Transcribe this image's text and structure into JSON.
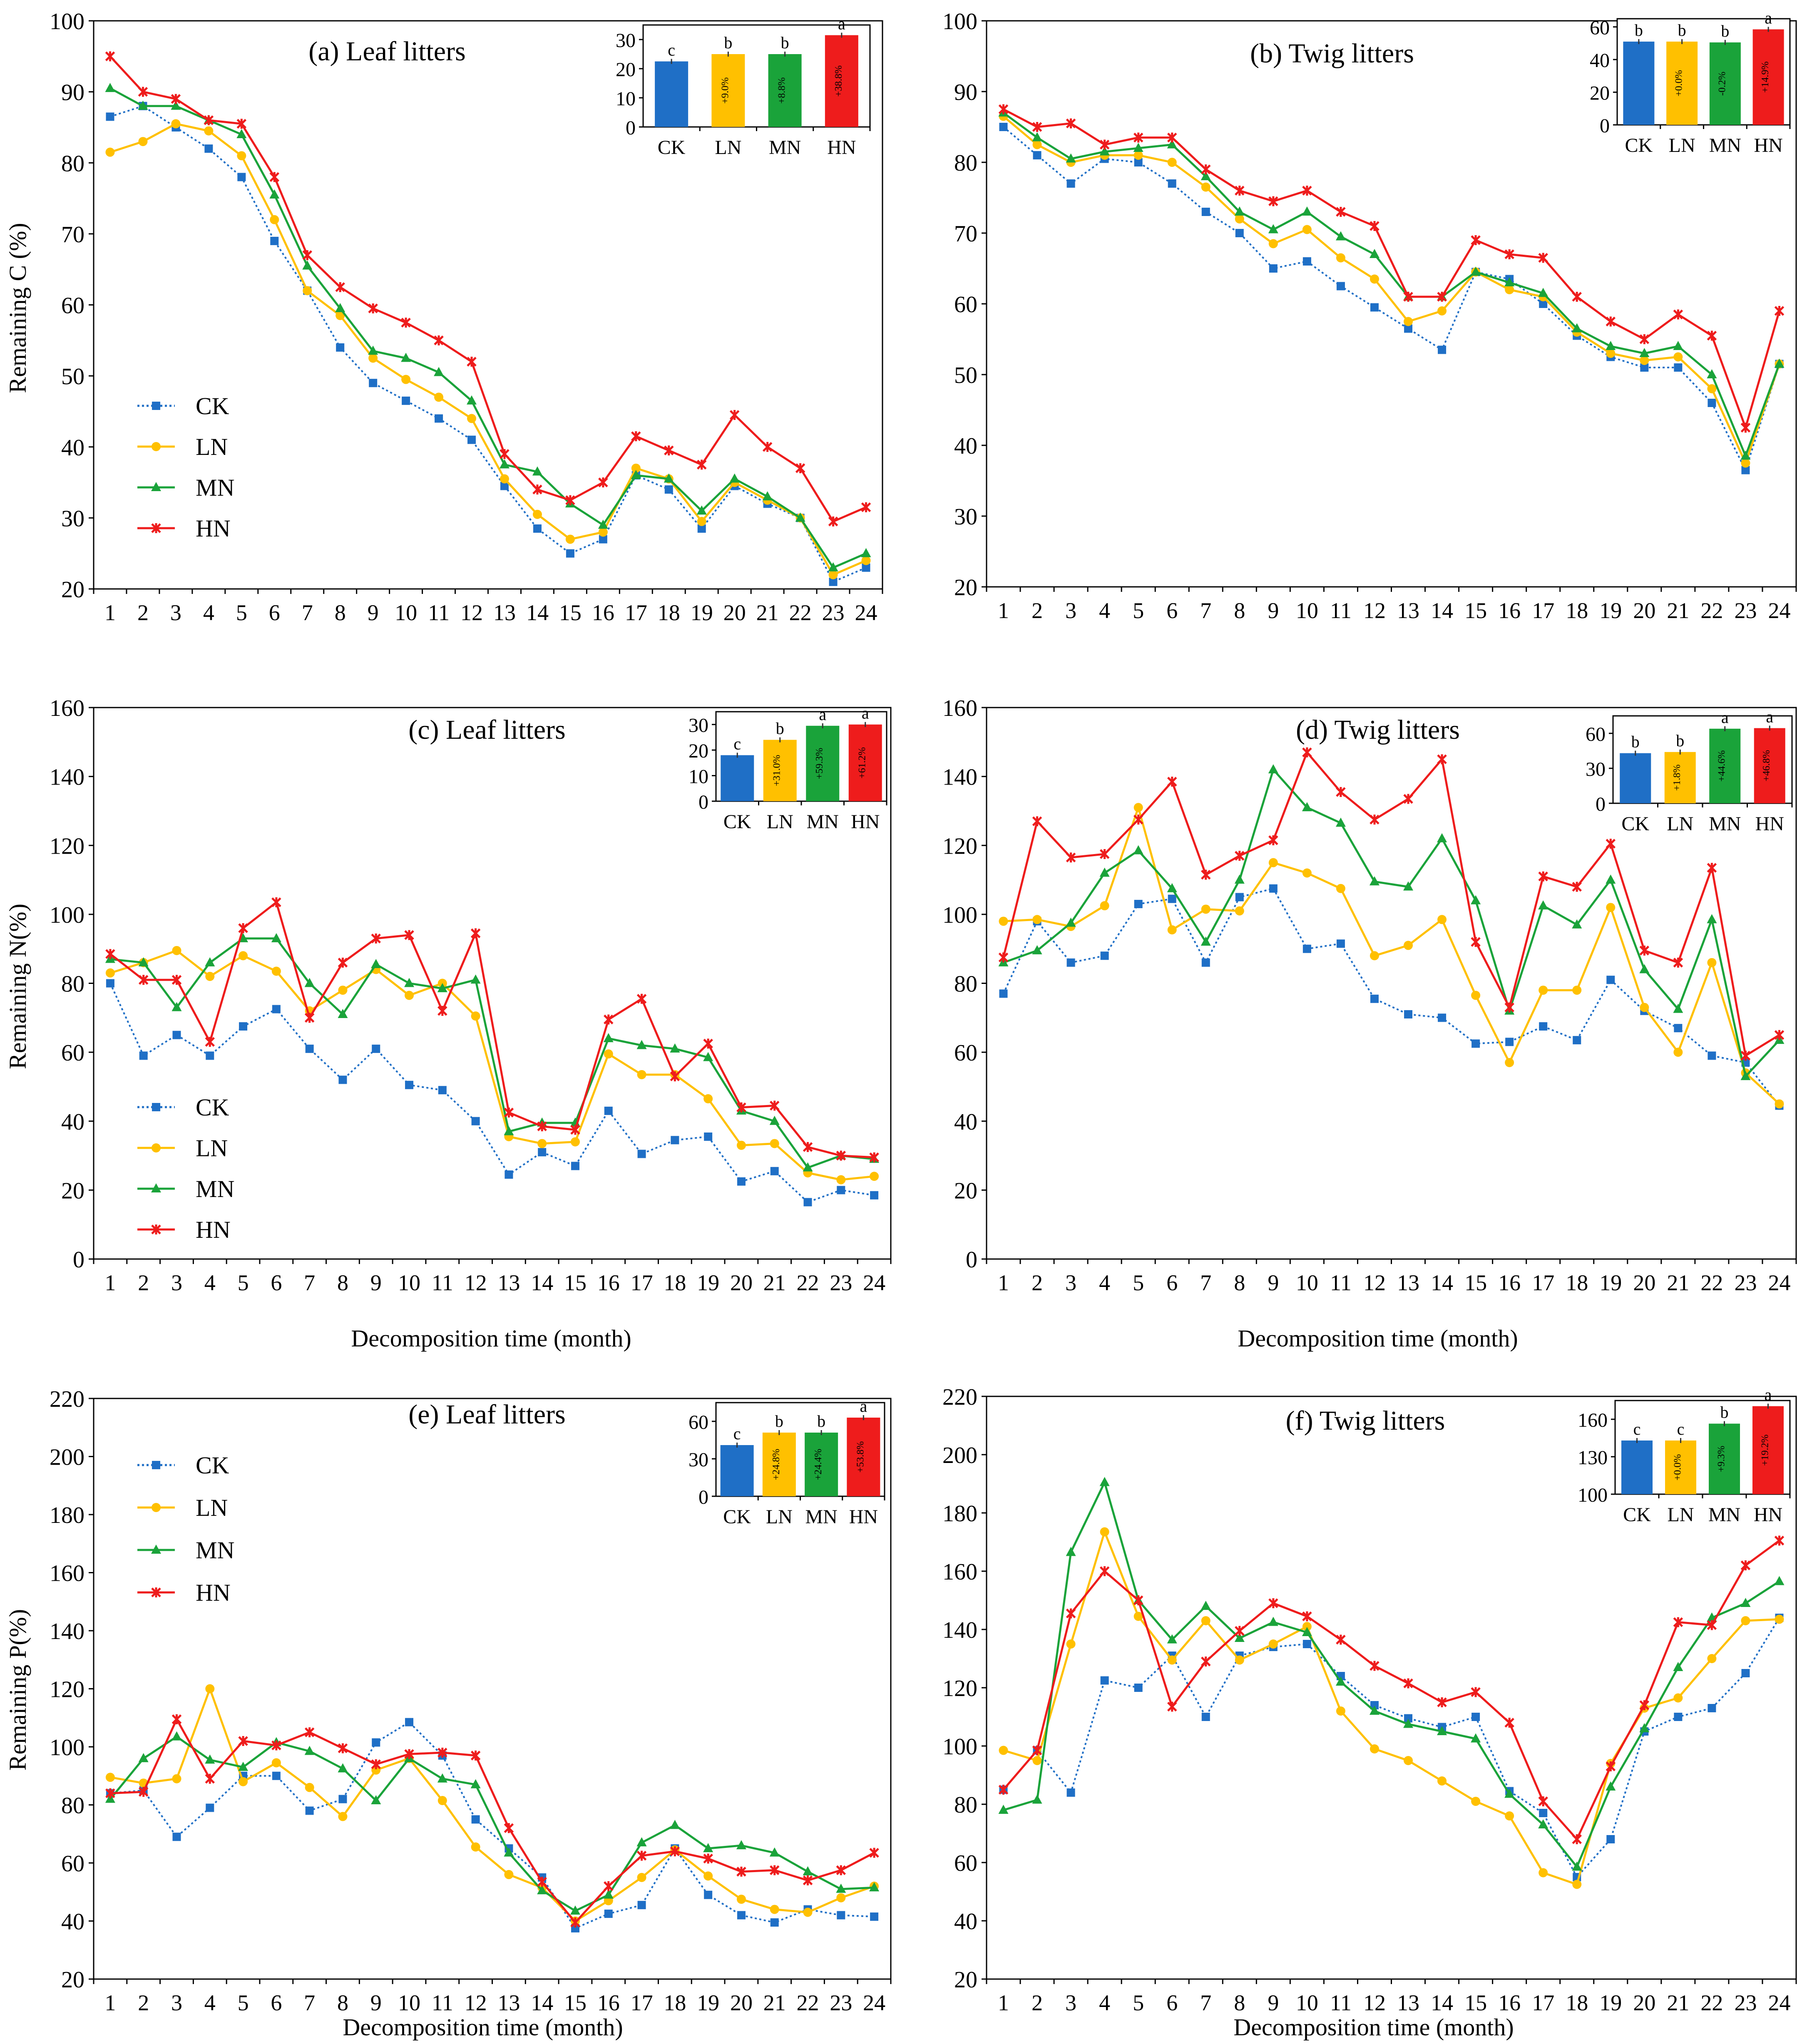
{
  "figure": {
    "axis_label_remaining_c": "Remaining C (%)",
    "axis_label_remaining_n": "Remaining N(%)",
    "axis_label_remaining_p": "Remaining P(%)",
    "axis_label_time": "Decomposition time (month)"
  },
  "colors": {
    "CK": "#1f6fc6",
    "LN": "#ffc000",
    "MN": "#1aa33a",
    "HN": "#ee1c1c"
  },
  "chart_data": [
    {
      "id": "a",
      "type": "line",
      "title": "(a) Leaf litters",
      "xlabel": "",
      "ylabel": "Remaining C (%)",
      "x": [
        1,
        2,
        3,
        4,
        5,
        6,
        7,
        8,
        9,
        10,
        11,
        12,
        13,
        14,
        15,
        16,
        17,
        18,
        19,
        20,
        21,
        22,
        23,
        24
      ],
      "ylim": [
        20,
        100
      ],
      "yticks": [
        20,
        30,
        40,
        50,
        60,
        70,
        80,
        90,
        100
      ],
      "legend": "left",
      "series": [
        {
          "name": "CK",
          "values": [
            86.5,
            88,
            85,
            82,
            78,
            69,
            62,
            54,
            49,
            46.5,
            44,
            41,
            34.5,
            28.5,
            25,
            27,
            36,
            34,
            28.5,
            34.5,
            32,
            30,
            21,
            23
          ]
        },
        {
          "name": "LN",
          "values": [
            81.5,
            83,
            85.5,
            84.5,
            81,
            72,
            62,
            58.5,
            52.5,
            49.5,
            47,
            44,
            35.5,
            30.5,
            27,
            28,
            37,
            35.5,
            29.5,
            35,
            32.5,
            30,
            22,
            24
          ]
        },
        {
          "name": "MN",
          "values": [
            90.5,
            88,
            88,
            86,
            84,
            75.5,
            65.5,
            59.5,
            53.5,
            52.5,
            50.5,
            46.5,
            37.5,
            36.5,
            32,
            29,
            36,
            35.5,
            31,
            35.5,
            33,
            30,
            23,
            25
          ]
        },
        {
          "name": "HN",
          "values": [
            95,
            90,
            89,
            86,
            85.5,
            78,
            67,
            62.5,
            59.5,
            57.5,
            55,
            52,
            39,
            34,
            32.5,
            35,
            41.5,
            39.5,
            37.5,
            44.5,
            40,
            37,
            29.5,
            31.5
          ]
        }
      ],
      "inset": {
        "type": "bar",
        "categories": [
          "CK",
          "LN",
          "MN",
          "HN"
        ],
        "values": [
          22.5,
          25,
          25,
          31.5
        ],
        "ylim": [
          0,
          35
        ],
        "yticks": [
          0,
          10,
          20,
          30
        ],
        "letters": [
          "c",
          "b",
          "b",
          "a"
        ],
        "changes": [
          "",
          "+9.0%",
          "+8.8%",
          "+38.8%"
        ]
      }
    },
    {
      "id": "b",
      "type": "line",
      "title": "(b) Twig litters",
      "xlabel": "",
      "ylabel": "",
      "x": [
        1,
        2,
        3,
        4,
        5,
        6,
        7,
        8,
        9,
        10,
        11,
        12,
        13,
        14,
        15,
        16,
        17,
        18,
        19,
        20,
        21,
        22,
        23,
        24
      ],
      "ylim": [
        20,
        100
      ],
      "yticks": [
        20,
        30,
        40,
        50,
        60,
        70,
        80,
        90,
        100
      ],
      "legend": "none",
      "series": [
        {
          "name": "CK",
          "values": [
            85,
            81,
            77,
            80.5,
            80,
            77,
            73,
            70,
            65,
            66,
            62.5,
            59.5,
            56.5,
            53.5,
            64.5,
            63.5,
            60,
            55.5,
            52.5,
            51,
            51,
            46,
            36.5,
            51.5
          ]
        },
        {
          "name": "LN",
          "values": [
            86.5,
            82.5,
            80,
            81,
            81,
            80,
            76.5,
            72,
            68.5,
            70.5,
            66.5,
            63.5,
            57.5,
            59,
            64.5,
            62,
            61,
            56,
            53,
            52,
            52.5,
            48,
            37.5,
            51.5
          ]
        },
        {
          "name": "MN",
          "values": [
            87,
            83.5,
            80.5,
            81.5,
            82,
            82.5,
            78,
            73,
            70.5,
            73,
            69.5,
            67,
            61,
            61,
            64.5,
            63,
            61.5,
            56.5,
            54,
            53,
            54,
            50,
            38.5,
            51.5
          ]
        },
        {
          "name": "HN",
          "values": [
            87.5,
            85,
            85.5,
            82.5,
            83.5,
            83.5,
            79,
            76,
            74.5,
            76,
            73,
            71,
            61,
            61,
            69,
            67,
            66.5,
            61,
            57.5,
            55,
            58.5,
            55.5,
            42.5,
            59
          ]
        }
      ],
      "inset": {
        "type": "bar",
        "categories": [
          "CK",
          "LN",
          "MN",
          "HN"
        ],
        "values": [
          51,
          51,
          50.5,
          58.5
        ],
        "ylim": [
          0,
          65
        ],
        "yticks": [
          0,
          20,
          40,
          60
        ],
        "letters": [
          "b",
          "b",
          "b",
          "a"
        ],
        "changes": [
          "",
          "+0.0%",
          "-0.2%",
          "+14.9%"
        ]
      }
    },
    {
      "id": "c",
      "type": "line",
      "title": "(c) Leaf litters",
      "xlabel": "Decomposition time (month)",
      "ylabel": "Remaining N(%)",
      "x": [
        1,
        2,
        3,
        4,
        5,
        6,
        7,
        8,
        9,
        10,
        11,
        12,
        13,
        14,
        15,
        16,
        17,
        18,
        19,
        20,
        21,
        22,
        23,
        24
      ],
      "ylim": [
        0,
        160
      ],
      "yticks": [
        0,
        20,
        40,
        60,
        80,
        100,
        120,
        140,
        160
      ],
      "legend": "left",
      "series": [
        {
          "name": "CK",
          "values": [
            80,
            59,
            65,
            59,
            67.5,
            72.5,
            61,
            52,
            61,
            50.5,
            49,
            40,
            24.5,
            31,
            27,
            43,
            30.5,
            34.5,
            35.5,
            22.5,
            25.5,
            16.5,
            20,
            18.5
          ]
        },
        {
          "name": "LN",
          "values": [
            83,
            86,
            89.5,
            82,
            88,
            83.5,
            72,
            78,
            84,
            76.5,
            80,
            70.5,
            35.5,
            33.5,
            34,
            59.5,
            53.5,
            53.5,
            46.5,
            33,
            33.5,
            25,
            23,
            24
          ]
        },
        {
          "name": "MN",
          "values": [
            87,
            86,
            73,
            86,
            93,
            93,
            80,
            71,
            85.5,
            80,
            78.5,
            81,
            37,
            39.5,
            39.5,
            64,
            62,
            61,
            58.5,
            43,
            40,
            26.5,
            30,
            29
          ]
        },
        {
          "name": "HN",
          "values": [
            88.5,
            81,
            81,
            63,
            96,
            103.5,
            70,
            86,
            93,
            94,
            72,
            94.5,
            42.5,
            38.5,
            37.5,
            69.5,
            75.5,
            53,
            62.5,
            44,
            44.5,
            32.5,
            30,
            29.5
          ]
        }
      ],
      "inset": {
        "type": "bar",
        "categories": [
          "CK",
          "LN",
          "MN",
          "HN"
        ],
        "values": [
          18,
          24,
          29.5,
          30
        ],
        "ylim": [
          0,
          35
        ],
        "yticks": [
          0,
          10,
          20,
          30
        ],
        "letters": [
          "c",
          "b",
          "a",
          "a"
        ],
        "changes": [
          "",
          "+31.0%",
          "+59.3%",
          "+61.2%"
        ]
      }
    },
    {
      "id": "d",
      "type": "line",
      "title": "(d) Twig litters",
      "xlabel": "Decomposition time (month)",
      "ylabel": "",
      "x": [
        1,
        2,
        3,
        4,
        5,
        6,
        7,
        8,
        9,
        10,
        11,
        12,
        13,
        14,
        15,
        16,
        17,
        18,
        19,
        20,
        21,
        22,
        23,
        24
      ],
      "ylim": [
        0,
        160
      ],
      "yticks": [
        0,
        20,
        40,
        60,
        80,
        100,
        120,
        140,
        160
      ],
      "legend": "none",
      "series": [
        {
          "name": "CK",
          "values": [
            77,
            98,
            86,
            88,
            103,
            104.5,
            86,
            105,
            107.5,
            90,
            91.5,
            75.5,
            71,
            70,
            62.5,
            63,
            67.5,
            63.5,
            81,
            72,
            67,
            59,
            57,
            44.5
          ]
        },
        {
          "name": "LN",
          "values": [
            98,
            98.5,
            96.5,
            102.5,
            131,
            95.5,
            101.5,
            101,
            115,
            112,
            107.5,
            88,
            91,
            98.5,
            76.5,
            57,
            78,
            78,
            102,
            73,
            60,
            86,
            54,
            45
          ]
        },
        {
          "name": "MN",
          "values": [
            86,
            89.5,
            97.5,
            112,
            118.5,
            107.5,
            92,
            110,
            142,
            131,
            126.5,
            109.5,
            108,
            122,
            104,
            72,
            102.5,
            97,
            110,
            84,
            72.5,
            98.5,
            53,
            63.5
          ]
        },
        {
          "name": "HN",
          "values": [
            87.5,
            127,
            116.5,
            117.5,
            127.5,
            138.5,
            111.5,
            117,
            121.5,
            147,
            135.5,
            127.5,
            133.5,
            145,
            92,
            73,
            111,
            108,
            120.5,
            89.5,
            86,
            113.5,
            59,
            65
          ]
        }
      ],
      "inset": {
        "type": "bar",
        "categories": [
          "CK",
          "LN",
          "MN",
          "HN"
        ],
        "values": [
          43,
          44,
          64,
          64.5
        ],
        "ylim": [
          0,
          75
        ],
        "yticks": [
          0,
          30,
          60
        ],
        "letters": [
          "b",
          "b",
          "a",
          "a"
        ],
        "changes": [
          "",
          "+1.8%",
          "+44.6%",
          "+46.8%"
        ]
      }
    },
    {
      "id": "e",
      "type": "line",
      "title": "(e) Leaf litters",
      "xlabel": "Decomposition time (month)",
      "ylabel": "Remaining P(%)",
      "x": [
        1,
        2,
        3,
        4,
        5,
        6,
        7,
        8,
        9,
        10,
        11,
        12,
        13,
        14,
        15,
        16,
        17,
        18,
        19,
        20,
        21,
        22,
        23,
        24
      ],
      "ylim": [
        20,
        220
      ],
      "yticks": [
        20,
        40,
        60,
        80,
        100,
        120,
        140,
        160,
        180,
        200,
        220
      ],
      "legend": "top-left",
      "series": [
        {
          "name": "CK",
          "values": [
            84,
            85,
            69,
            79,
            90,
            90,
            78,
            82,
            101.5,
            108.5,
            97,
            75,
            65,
            55,
            37.5,
            42.5,
            45.5,
            65,
            49,
            42,
            39.5,
            44,
            42,
            41.5
          ]
        },
        {
          "name": "LN",
          "values": [
            89.5,
            87.5,
            89,
            120,
            88,
            94.5,
            86,
            76,
            92,
            96,
            81.5,
            65.5,
            56,
            51.5,
            40,
            47,
            55,
            64.5,
            55.5,
            47.5,
            44,
            43,
            48,
            52
          ]
        },
        {
          "name": "MN",
          "values": [
            82,
            96,
            103.5,
            95.5,
            93,
            101.5,
            98.5,
            92.5,
            81.5,
            96,
            89,
            87,
            63.5,
            50.5,
            43.5,
            49,
            67,
            73,
            65,
            66,
            63.5,
            57,
            51,
            51.5
          ]
        },
        {
          "name": "HN",
          "values": [
            84,
            84.5,
            109.5,
            89,
            102,
            100.5,
            105,
            99.5,
            94,
            97.5,
            98,
            97,
            72,
            53.5,
            39.5,
            52,
            62.5,
            64,
            61.5,
            57,
            57.5,
            54,
            57.5,
            63.5
          ]
        }
      ],
      "inset": {
        "type": "bar",
        "categories": [
          "CK",
          "LN",
          "MN",
          "HN"
        ],
        "values": [
          41,
          51,
          51,
          63
        ],
        "ylim": [
          0,
          75
        ],
        "yticks": [
          0,
          30,
          60
        ],
        "letters": [
          "c",
          "b",
          "b",
          "a"
        ],
        "changes": [
          "",
          "+24.8%",
          "+24.4%",
          "+53.8%"
        ]
      }
    },
    {
      "id": "f",
      "type": "line",
      "title": "(f) Twig litters",
      "xlabel": "Decomposition time (month)",
      "ylabel": "",
      "x": [
        1,
        2,
        3,
        4,
        5,
        6,
        7,
        8,
        9,
        10,
        11,
        12,
        13,
        14,
        15,
        16,
        17,
        18,
        19,
        20,
        21,
        22,
        23,
        24
      ],
      "ylim": [
        20,
        220
      ],
      "yticks": [
        20,
        40,
        60,
        80,
        100,
        120,
        140,
        160,
        180,
        200,
        220
      ],
      "legend": "none",
      "series": [
        {
          "name": "CK",
          "values": [
            85,
            98.5,
            84,
            122.5,
            120,
            131,
            110,
            131,
            134,
            135,
            124,
            114,
            109.5,
            106.5,
            110,
            84.5,
            77,
            55,
            68,
            105,
            110,
            113,
            125,
            144
          ]
        },
        {
          "name": "LN",
          "values": [
            98.5,
            95,
            135,
            173.5,
            144.5,
            129.5,
            143,
            129.5,
            135,
            141,
            112,
            99,
            95,
            88,
            81,
            76,
            56.5,
            52.5,
            94,
            113,
            116.5,
            130,
            143,
            143.5
          ]
        },
        {
          "name": "MN",
          "values": [
            78,
            81.5,
            166.5,
            190.5,
            150,
            136.5,
            148,
            137,
            142.5,
            139,
            122,
            112,
            107.5,
            105,
            102.5,
            83.5,
            73,
            58.5,
            86,
            106,
            127,
            144,
            149,
            156.5
          ]
        },
        {
          "name": "HN",
          "values": [
            85,
            98.5,
            145.5,
            160,
            150,
            113.5,
            129,
            139.5,
            149,
            144.5,
            136.5,
            127.5,
            121.5,
            115,
            118.5,
            108,
            81,
            68,
            93,
            114,
            142.5,
            141.5,
            162,
            170.5
          ]
        }
      ],
      "inset": {
        "type": "bar",
        "categories": [
          "CK",
          "LN",
          "MN",
          "HN"
        ],
        "values": [
          143,
          143,
          156.5,
          170.5
        ],
        "ylim": [
          100,
          175
        ],
        "yticks": [
          100,
          130,
          160
        ],
        "letters": [
          "c",
          "c",
          "b",
          "a"
        ],
        "changes": [
          "",
          "+0.0%",
          "+9.3%",
          "+19.2%"
        ]
      }
    }
  ]
}
